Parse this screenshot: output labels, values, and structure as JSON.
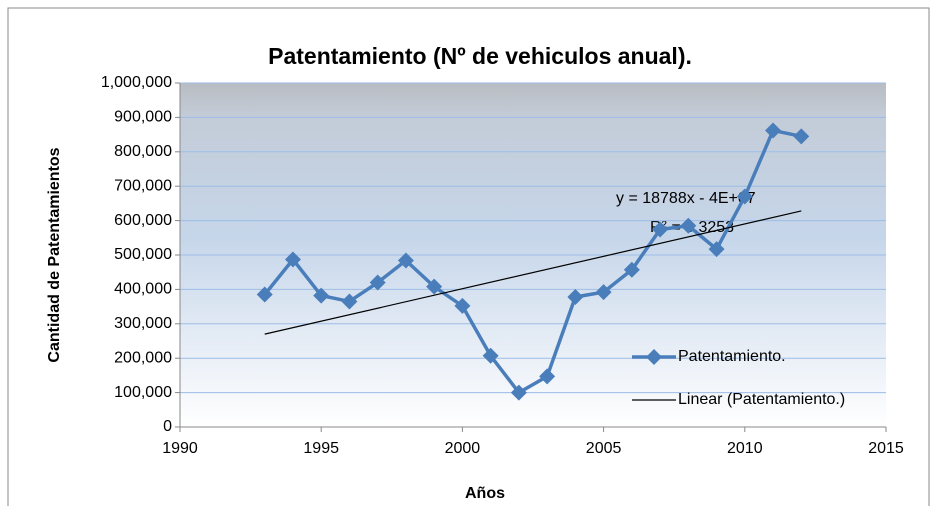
{
  "chart_data": {
    "type": "scatter-line",
    "title": "Patentamiento  (Nº de vehiculos anual).",
    "x_label": "Años",
    "y_label": "Cantidad de Patentamientos",
    "annotations": [
      "y = 18788x - 4E+07",
      "R² = 0.3253"
    ],
    "series": [
      {
        "name": "Patentamiento.",
        "color": "#4a7ebb",
        "marker": "diamond",
        "x": [
          1993,
          1994,
          1995,
          1996,
          1997,
          1998,
          1999,
          2000,
          2001,
          2002,
          2003,
          2004,
          2005,
          2006,
          2007,
          2008,
          2009,
          2010,
          2011,
          2012
        ],
        "values": [
          385000,
          487000,
          382000,
          365000,
          420000,
          484000,
          408000,
          352000,
          207000,
          100000,
          147000,
          378000,
          392000,
          457000,
          574000,
          585000,
          517000,
          670000,
          862000,
          845000
        ]
      },
      {
        "name": "Linear (Patentamiento.)",
        "color": "#000000",
        "marker": "none",
        "x": [
          1993,
          2012
        ],
        "values": [
          270000,
          628000
        ]
      }
    ],
    "xlim": [
      1990,
      2015
    ],
    "xticks": [
      1990,
      1995,
      2000,
      2005,
      2010,
      2015
    ],
    "ylim": [
      0,
      1000000
    ],
    "yticks": [
      0,
      {
        "value": 100000,
        "label": "100,000"
      },
      {
        "value": 200000,
        "label": "200,000"
      },
      {
        "value": 300000,
        "label": "300,000"
      },
      {
        "value": 400000,
        "label": "400,000"
      },
      {
        "value": 500000,
        "label": "500,000"
      },
      {
        "value": 600000,
        "label": "600,000"
      },
      {
        "value": 700000,
        "label": "700,000"
      },
      {
        "value": 800000,
        "label": "800,000"
      },
      {
        "value": 900000,
        "label": "900,000"
      },
      {
        "value": 1000000,
        "label": "1,000,000"
      }
    ],
    "grid": true,
    "legend": "lower right"
  }
}
